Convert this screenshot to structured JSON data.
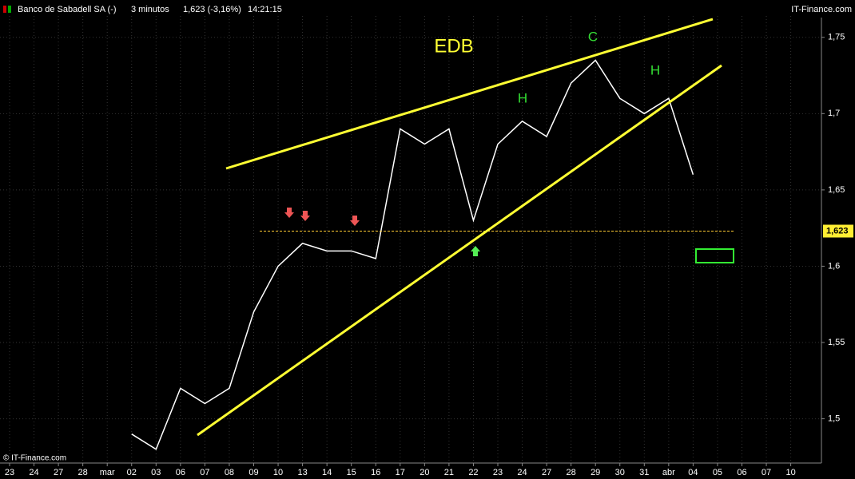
{
  "header": {
    "name": "Banco de Sabadell SA (-)",
    "interval": "3 minutos",
    "quote": "1,623 (-3,16%)",
    "time": "14:21:15",
    "site": "IT-Finance.com"
  },
  "copyright": "© IT-Finance.com",
  "chart_data": {
    "type": "line",
    "categories": [
      "23",
      "24",
      "27",
      "28",
      "mar",
      "02",
      "03",
      "06",
      "07",
      "08",
      "09",
      "10",
      "13",
      "14",
      "15",
      "16",
      "17",
      "20",
      "21",
      "22",
      "23",
      "24",
      "27",
      "28",
      "29",
      "30",
      "31",
      "abr",
      "04",
      "05",
      "06",
      "07",
      "10"
    ],
    "series": [
      {
        "name": "Banco de Sabadell SA",
        "color": "#ffffff",
        "values": [
          null,
          null,
          null,
          null,
          null,
          1.49,
          1.48,
          1.52,
          1.51,
          1.52,
          1.57,
          1.6,
          1.615,
          1.61,
          1.61,
          1.605,
          1.69,
          1.68,
          1.69,
          1.63,
          1.68,
          1.695,
          1.685,
          1.72,
          1.735,
          1.71,
          1.7,
          1.71,
          1.66,
          null,
          null,
          null,
          null
        ]
      }
    ],
    "ylim": [
      1.471,
      1.764
    ],
    "yticks": [
      {
        "value": 1.5,
        "label": "1,5"
      },
      {
        "value": 1.55,
        "label": "1,55"
      },
      {
        "value": 1.6,
        "label": "1,6"
      },
      {
        "value": 1.65,
        "label": "1,65"
      },
      {
        "value": 1.7,
        "label": "1,7"
      },
      {
        "value": 1.75,
        "label": "1,75"
      }
    ],
    "last": {
      "value": 1.623,
      "label": "1,623"
    },
    "annotations": [
      "EDB",
      "C",
      "H",
      "H"
    ],
    "grid": true
  }
}
